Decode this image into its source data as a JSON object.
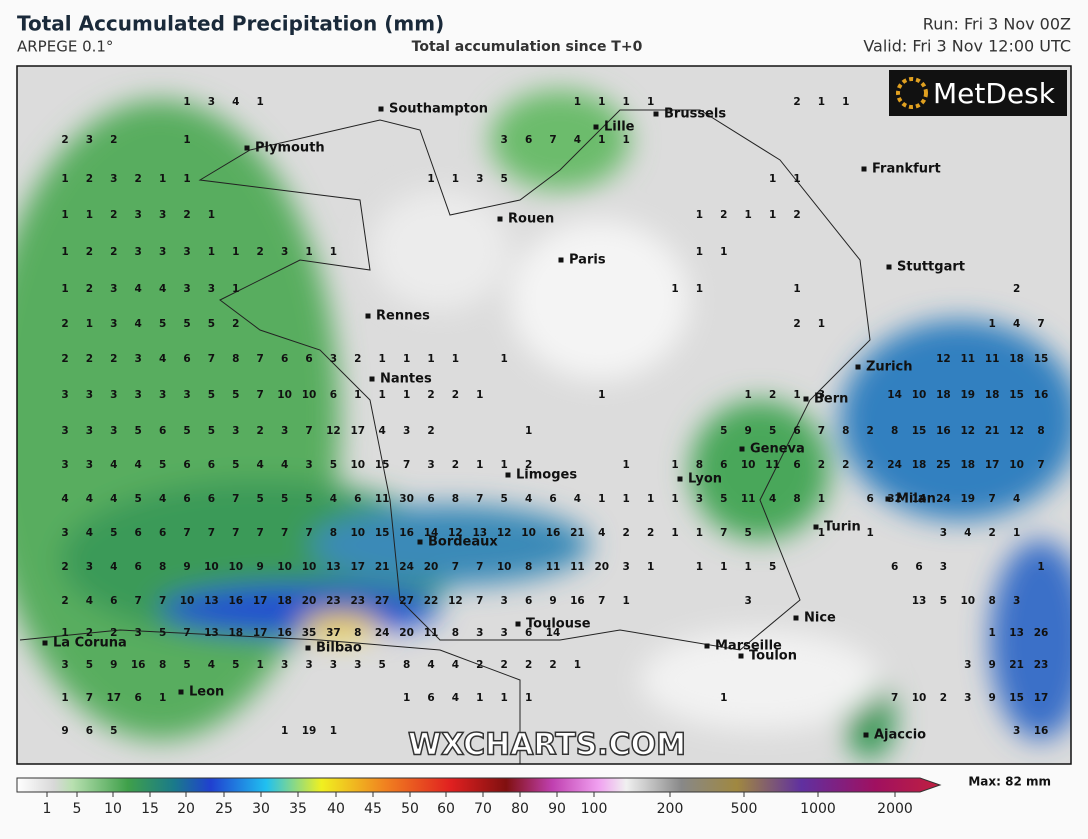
{
  "header": {
    "title": "Total Accumulated Precipitation (mm)",
    "model": "ARPEGE 0.1°",
    "subtitle": "Total accumulation since T+0",
    "run": "Run: Fri 3 Nov 00Z",
    "valid": "Valid: Fri 3 Nov 12:00 UTC"
  },
  "logo": "MetDesk",
  "watermark": "WXCHARTS.COM",
  "cities": [
    "Southampton",
    "Plymouth",
    "Lille",
    "Brussels",
    "Frankfurt",
    "Rouen",
    "Paris",
    "Stuttgart",
    "Rennes",
    "Nantes",
    "Zurich",
    "Bern",
    "Geneva",
    "Limoges",
    "Lyon",
    "Milan",
    "Bordeaux",
    "Turin",
    "Toulouse",
    "Nice",
    "Marseille",
    "Toulon",
    "La Coruna",
    "Bilbao",
    "Leon",
    "Ajaccio"
  ],
  "grid_values": [
    [
      null,
      null,
      null,
      null,
      null,
      1,
      3,
      4,
      1,
      null,
      null,
      null,
      null,
      null,
      null,
      null,
      null,
      null,
      null,
      null,
      null,
      1,
      1,
      1,
      1,
      null,
      null,
      null,
      null,
      null,
      2,
      1,
      1,
      null,
      null,
      null,
      null,
      null,
      null,
      null,
      null
    ],
    [
      2,
      3,
      2,
      null,
      null,
      1,
      null,
      null,
      null,
      null,
      null,
      null,
      null,
      null,
      null,
      null,
      null,
      null,
      3,
      6,
      7,
      4,
      1,
      1,
      null,
      null,
      null,
      null,
      null,
      null,
      null,
      null,
      null,
      null,
      null,
      null,
      null,
      null,
      null,
      null,
      null
    ],
    [
      1,
      2,
      3,
      2,
      1,
      1,
      null,
      null,
      null,
      null,
      null,
      null,
      null,
      null,
      null,
      1,
      1,
      3,
      5,
      null,
      null,
      null,
      null,
      null,
      null,
      null,
      null,
      null,
      null,
      1,
      1,
      null,
      null,
      null,
      null,
      null,
      null,
      null,
      null,
      null,
      null
    ],
    [
      1,
      1,
      2,
      3,
      3,
      2,
      1,
      null,
      null,
      null,
      null,
      null,
      null,
      null,
      null,
      null,
      null,
      null,
      null,
      null,
      null,
      null,
      null,
      null,
      null,
      null,
      1,
      2,
      1,
      1,
      2,
      null,
      null,
      null,
      null,
      null,
      null,
      null,
      null,
      null,
      null
    ],
    [
      1,
      2,
      2,
      3,
      3,
      3,
      1,
      1,
      2,
      3,
      1,
      1,
      null,
      null,
      null,
      null,
      null,
      null,
      null,
      null,
      null,
      null,
      null,
      null,
      null,
      null,
      1,
      1,
      null,
      null,
      null,
      null,
      null,
      null,
      null,
      null,
      null,
      null,
      null,
      null,
      null
    ],
    [
      1,
      2,
      3,
      4,
      4,
      3,
      3,
      1,
      null,
      null,
      null,
      null,
      null,
      null,
      null,
      null,
      null,
      null,
      null,
      null,
      null,
      null,
      null,
      null,
      null,
      1,
      1,
      null,
      null,
      null,
      1,
      null,
      null,
      null,
      null,
      null,
      null,
      null,
      null,
      2,
      null
    ],
    [
      2,
      1,
      3,
      4,
      5,
      5,
      5,
      2,
      null,
      null,
      null,
      null,
      null,
      null,
      null,
      null,
      null,
      null,
      null,
      null,
      null,
      null,
      null,
      null,
      null,
      null,
      null,
      null,
      null,
      null,
      2,
      1,
      null,
      null,
      null,
      null,
      null,
      null,
      1,
      4,
      7
    ],
    [
      2,
      2,
      2,
      3,
      4,
      6,
      7,
      8,
      7,
      6,
      6,
      3,
      2,
      1,
      1,
      1,
      1,
      null,
      1,
      null,
      null,
      null,
      null,
      null,
      null,
      null,
      null,
      null,
      null,
      null,
      null,
      null,
      null,
      null,
      null,
      null,
      12,
      11,
      11,
      18,
      15
    ],
    [
      3,
      3,
      3,
      3,
      3,
      3,
      5,
      5,
      7,
      10,
      10,
      6,
      1,
      1,
      1,
      2,
      2,
      1,
      null,
      null,
      null,
      null,
      1,
      null,
      null,
      null,
      null,
      null,
      1,
      2,
      1,
      3,
      null,
      null,
      14,
      10,
      18,
      19,
      18,
      15,
      16
    ],
    [
      3,
      3,
      3,
      5,
      6,
      5,
      5,
      3,
      2,
      3,
      7,
      12,
      17,
      4,
      3,
      2,
      null,
      null,
      null,
      1,
      null,
      null,
      null,
      null,
      null,
      null,
      null,
      5,
      9,
      5,
      6,
      7,
      8,
      2,
      8,
      15,
      16,
      12,
      21,
      12,
      8
    ],
    [
      3,
      3,
      4,
      4,
      5,
      6,
      6,
      5,
      4,
      4,
      3,
      5,
      10,
      15,
      7,
      3,
      2,
      1,
      1,
      2,
      null,
      null,
      null,
      1,
      null,
      1,
      8,
      6,
      10,
      11,
      6,
      2,
      2,
      2,
      24,
      18,
      25,
      18,
      17,
      10,
      7
    ],
    [
      4,
      4,
      4,
      5,
      4,
      6,
      6,
      7,
      5,
      5,
      5,
      4,
      6,
      11,
      30,
      6,
      8,
      7,
      5,
      4,
      6,
      4,
      1,
      1,
      1,
      1,
      3,
      5,
      11,
      4,
      8,
      1,
      null,
      6,
      32,
      14,
      24,
      19,
      7,
      4,
      null
    ],
    [
      3,
      4,
      5,
      6,
      6,
      7,
      7,
      7,
      7,
      7,
      7,
      8,
      10,
      15,
      16,
      14,
      12,
      13,
      12,
      10,
      16,
      21,
      4,
      2,
      2,
      1,
      1,
      7,
      5,
      null,
      null,
      1,
      null,
      1,
      null,
      null,
      3,
      4,
      2,
      1,
      null
    ],
    [
      2,
      3,
      4,
      6,
      8,
      9,
      10,
      10,
      9,
      10,
      10,
      13,
      17,
      21,
      24,
      20,
      7,
      7,
      10,
      8,
      11,
      11,
      20,
      3,
      1,
      null,
      1,
      1,
      1,
      5,
      null,
      null,
      null,
      null,
      6,
      6,
      3,
      null,
      null,
      null,
      1
    ],
    [
      2,
      4,
      6,
      7,
      7,
      10,
      13,
      16,
      17,
      18,
      20,
      23,
      23,
      27,
      27,
      22,
      12,
      7,
      3,
      6,
      9,
      16,
      7,
      1,
      null,
      null,
      null,
      null,
      3,
      null,
      null,
      null,
      null,
      null,
      null,
      13,
      5,
      10,
      8,
      3,
      null
    ],
    [
      1,
      2,
      2,
      3,
      5,
      7,
      13,
      18,
      17,
      16,
      35,
      37,
      8,
      24,
      20,
      11,
      8,
      3,
      3,
      6,
      14,
      null,
      null,
      null,
      null,
      null,
      null,
      null,
      null,
      null,
      null,
      null,
      null,
      null,
      null,
      null,
      null,
      null,
      1,
      13,
      26
    ],
    [
      3,
      5,
      9,
      16,
      8,
      5,
      4,
      5,
      1,
      3,
      3,
      3,
      3,
      5,
      8,
      4,
      4,
      2,
      2,
      2,
      2,
      1,
      null,
      null,
      null,
      null,
      null,
      null,
      null,
      null,
      null,
      null,
      null,
      null,
      null,
      null,
      null,
      3,
      9,
      21,
      23
    ],
    [
      1,
      7,
      17,
      6,
      1,
      null,
      null,
      null,
      null,
      null,
      null,
      null,
      null,
      null,
      1,
      6,
      4,
      1,
      1,
      1,
      null,
      null,
      null,
      null,
      null,
      null,
      null,
      1,
      null,
      null,
      null,
      null,
      null,
      null,
      7,
      10,
      2,
      3,
      9,
      15,
      17
    ],
    [
      9,
      6,
      5,
      null,
      null,
      null,
      null,
      null,
      null,
      1,
      19,
      1,
      null,
      null,
      null,
      null,
      null,
      null,
      null,
      null,
      null,
      null,
      null,
      null,
      null,
      null,
      null,
      null,
      null,
      null,
      null,
      null,
      null,
      null,
      null,
      null,
      null,
      null,
      null,
      3,
      16
    ]
  ],
  "legend": {
    "ticks": [
      1,
      5,
      10,
      15,
      20,
      25,
      30,
      35,
      40,
      45,
      50,
      60,
      70,
      80,
      90,
      100,
      200,
      500,
      1000,
      2000
    ],
    "max": "Max: 82 mm"
  }
}
